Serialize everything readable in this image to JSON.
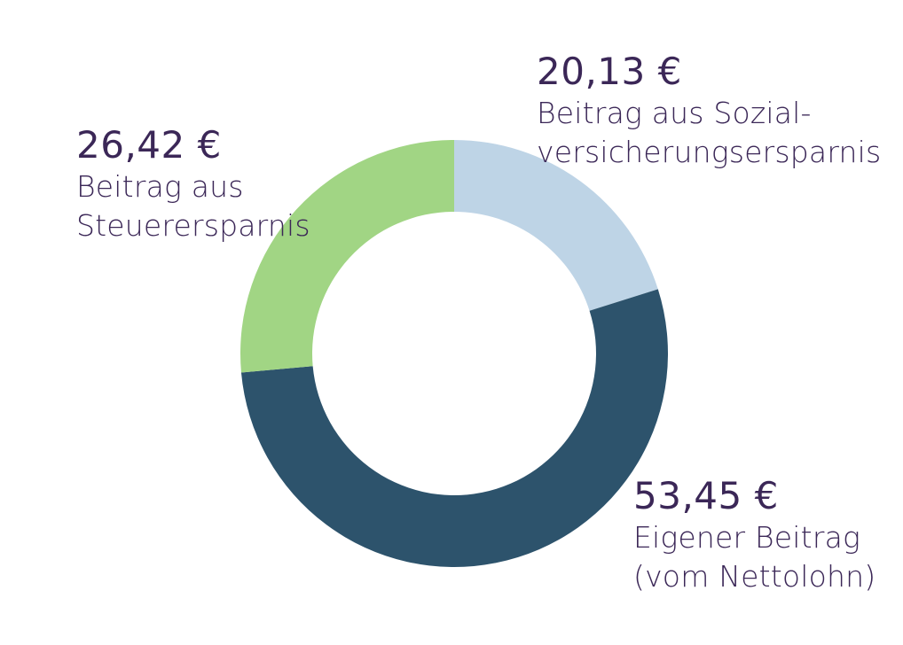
{
  "chart_data": {
    "type": "pie",
    "variant": "donut",
    "slices": [
      {
        "value": 20.13,
        "value_label": "20,13 €",
        "label_lines": [
          "Beitrag aus Sozial-",
          "versicherungsersparnis"
        ],
        "color": "#bed4e6"
      },
      {
        "value": 53.45,
        "value_label": "53,45 €",
        "label_lines": [
          "Eigener Beitrag",
          "(vom Nettolohn)"
        ],
        "color": "#2d536c"
      },
      {
        "value": 26.42,
        "value_label": "26,42 €",
        "label_lines": [
          "Beitrag aus",
          "Steuerersparnis"
        ],
        "color": "#a1d584"
      }
    ],
    "text_color": "#3b2757",
    "start": "top",
    "direction": "clockwise"
  }
}
